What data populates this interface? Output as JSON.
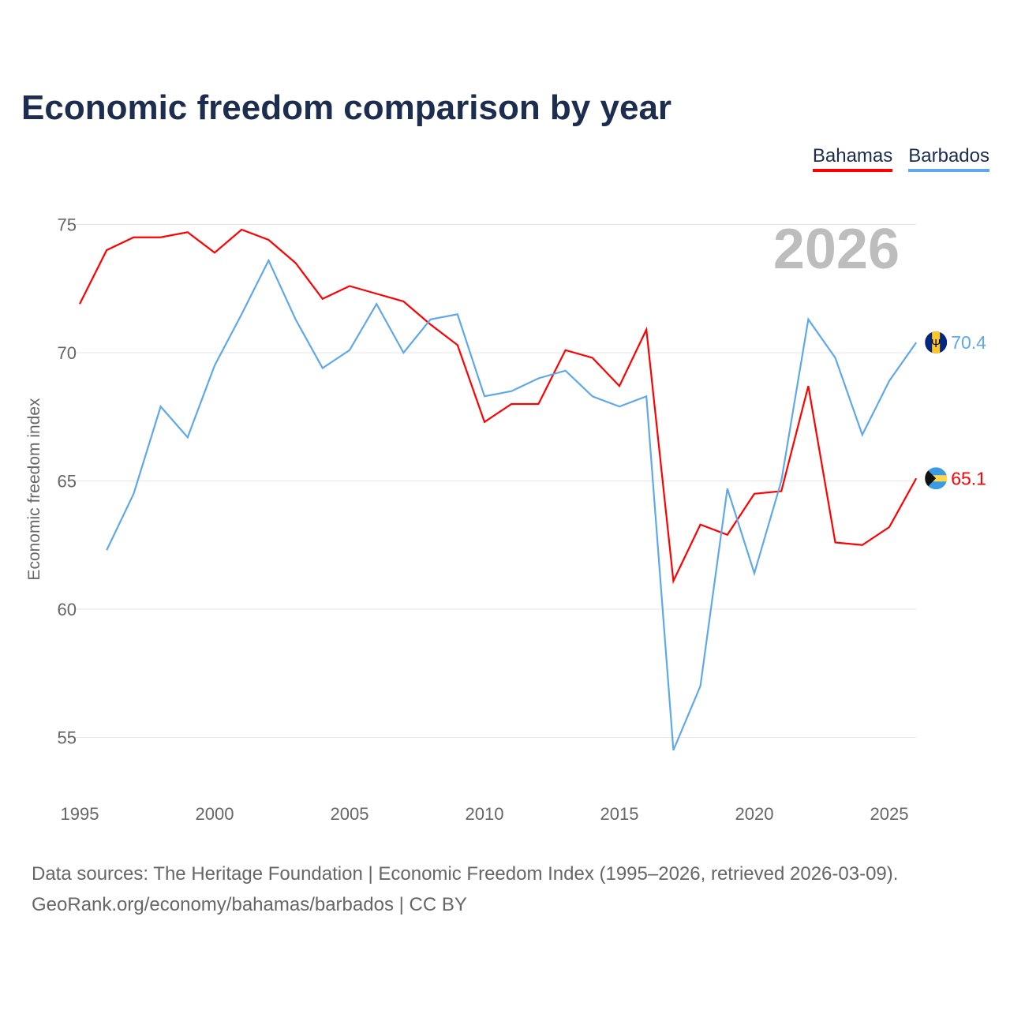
{
  "chart_data": {
    "type": "line",
    "title": "Economic freedom comparison by year",
    "ylabel": "Economic freedom index",
    "xlabel": "",
    "ylim": [
      53,
      76
    ],
    "xlim": [
      1995,
      2026
    ],
    "yticks": [
      55,
      60,
      65,
      70,
      75
    ],
    "xticks": [
      1995,
      2000,
      2005,
      2010,
      2015,
      2020,
      2025
    ],
    "year_label": "2026",
    "legend_position": "top-right",
    "series": [
      {
        "name": "Bahamas",
        "color": "#ff0000",
        "end_label": "65.1",
        "flag": "bahamas-flag",
        "x": [
          1995,
          1996,
          1997,
          1998,
          1999,
          2000,
          2001,
          2002,
          2003,
          2004,
          2005,
          2006,
          2007,
          2008,
          2009,
          2010,
          2011,
          2012,
          2013,
          2014,
          2015,
          2016,
          2017,
          2018,
          2019,
          2020,
          2021,
          2022,
          2023,
          2024,
          2025,
          2026
        ],
        "values": [
          71.9,
          74.0,
          74.5,
          74.5,
          74.7,
          73.9,
          74.8,
          74.4,
          73.5,
          72.1,
          72.6,
          72.3,
          72.0,
          71.1,
          70.3,
          67.3,
          68.0,
          68.0,
          70.1,
          69.8,
          68.7,
          70.9,
          61.1,
          63.3,
          62.9,
          64.5,
          64.6,
          68.7,
          62.6,
          62.5,
          63.2,
          65.1
        ]
      },
      {
        "name": "Barbados",
        "color": "#5fa8ea",
        "end_label": "70.4",
        "flag": "barbados-flag",
        "x": [
          1996,
          1997,
          1998,
          1999,
          2000,
          2001,
          2002,
          2003,
          2004,
          2005,
          2006,
          2007,
          2008,
          2009,
          2010,
          2011,
          2012,
          2013,
          2014,
          2015,
          2016,
          2017,
          2018,
          2019,
          2020,
          2021,
          2022,
          2023,
          2024,
          2025,
          2026
        ],
        "values": [
          62.3,
          64.5,
          67.9,
          66.7,
          69.5,
          71.5,
          73.6,
          71.3,
          69.4,
          70.1,
          71.9,
          70.0,
          71.3,
          71.5,
          68.3,
          68.5,
          69.0,
          69.3,
          68.3,
          67.9,
          68.3,
          54.5,
          57.0,
          64.7,
          61.4,
          65.0,
          71.3,
          69.8,
          66.8,
          68.9,
          70.4
        ]
      }
    ]
  },
  "footer": {
    "line1": "Data sources: The Heritage Foundation | Economic Freedom Index (1995–2026, retrieved 2026-03-09).",
    "line2": "GeoRank.org/economy/bahamas/barbados | CC BY"
  }
}
